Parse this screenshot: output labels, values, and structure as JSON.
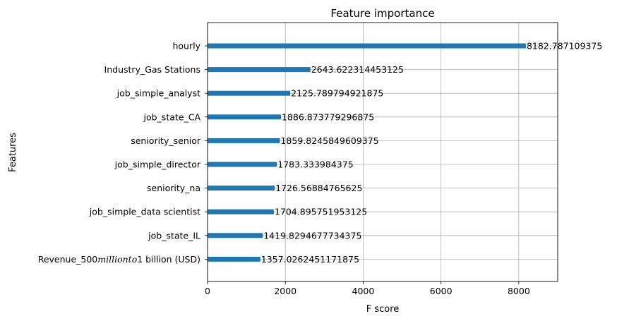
{
  "chart_data": {
    "type": "bar",
    "orientation": "horizontal",
    "title": "Feature importance",
    "xlabel": "F score",
    "ylabel": "Features",
    "xlim": [
      0,
      9000
    ],
    "xticks": [
      0,
      2000,
      4000,
      6000,
      8000
    ],
    "grid": true,
    "legend": "none",
    "bar_color": "#1f77b4",
    "categories": [
      "hourly",
      "Industry_Gas Stations",
      "job_simple_analyst",
      "job_state_CA",
      "seniority_senior",
      "job_simple_director",
      "seniority_na",
      "job_simple_data scientist",
      "job_state_IL",
      "Revenue_500millionto1 billion (USD)"
    ],
    "category_parts": [
      null,
      null,
      null,
      null,
      null,
      null,
      null,
      null,
      null,
      [
        "Revenue_500",
        "millionto",
        "1 billion (USD)"
      ]
    ],
    "values": [
      8182.787109375,
      2643.622314453125,
      2125.789794921875,
      1886.873779296875,
      1859.8245849609375,
      1783.333984375,
      1726.56884765625,
      1704.895751953125,
      1419.8294677734375,
      1357.0262451171875
    ],
    "data_labels": [
      "8182.787109375",
      "2643.622314453125",
      "2125.789794921875",
      "1886.873779296875",
      "1859.8245849609375",
      "1783.333984375",
      "1726.56884765625",
      "1704.895751953125",
      "1419.8294677734375",
      "1357.0262451171875"
    ]
  }
}
